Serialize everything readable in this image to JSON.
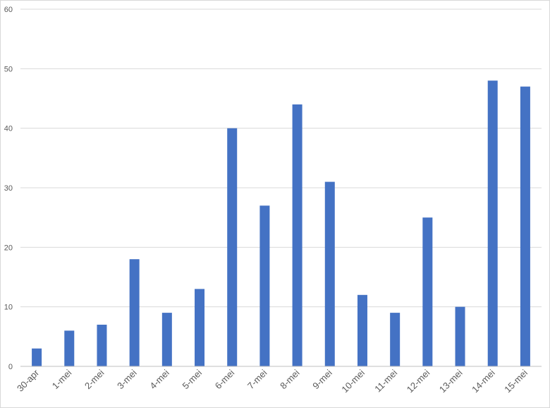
{
  "chart_data": {
    "type": "bar",
    "categories": [
      "30-apr",
      "1-mei",
      "2-mei",
      "3-mei",
      "4-mei",
      "5-mei",
      "6-mei",
      "7-mei",
      "8-mei",
      "9-mei",
      "10-mei",
      "11-mei",
      "12-mei",
      "13-mei",
      "14-mei",
      "15-mei"
    ],
    "values": [
      3,
      6,
      7,
      18,
      9,
      13,
      40,
      27,
      44,
      31,
      12,
      9,
      25,
      10,
      48,
      47
    ],
    "ylim": [
      0,
      60
    ],
    "yticks": [
      0,
      10,
      20,
      30,
      40,
      50,
      60
    ],
    "grid": true,
    "legend": "none",
    "title": "",
    "xlabel": "",
    "ylabel": "",
    "colors": {
      "bar": "#4472c4",
      "grid": "#d9d9d9",
      "text": "#595959"
    }
  }
}
